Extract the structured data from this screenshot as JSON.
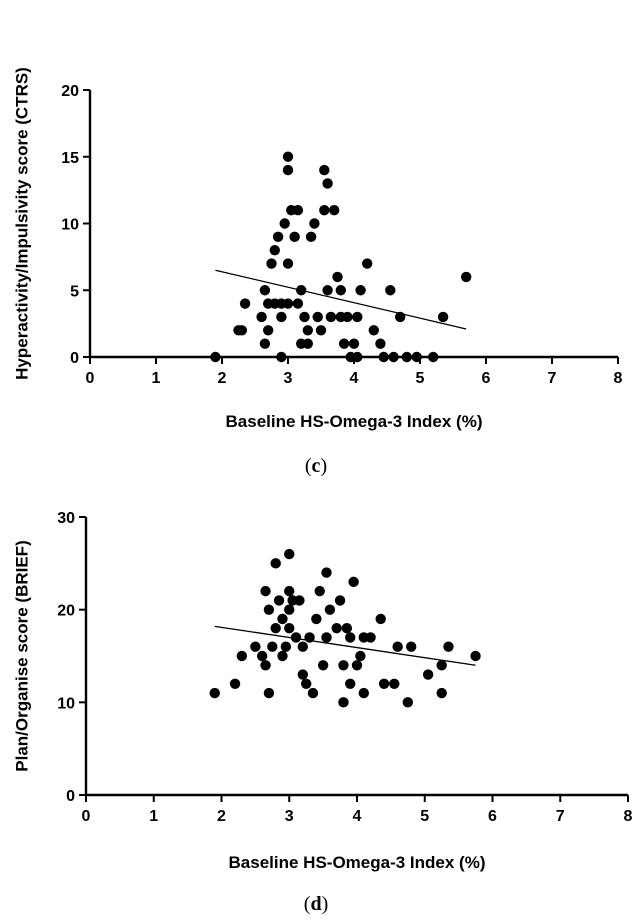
{
  "chart_data": [
    {
      "type": "scatter",
      "panel_label": "c",
      "xlabel": "Baseline HS-Omega-3 Index (%)",
      "ylabel": "Hyperactivity/Impulsivity score (CTRS)",
      "xlim": [
        0,
        8
      ],
      "ylim": [
        0,
        20
      ],
      "x_ticks": [
        0,
        1,
        2,
        3,
        4,
        5,
        6,
        7,
        8
      ],
      "y_ticks": [
        0,
        5,
        10,
        15,
        20
      ],
      "grid": false,
      "marker_color": "#000000",
      "points": [
        [
          1.9,
          0
        ],
        [
          2.25,
          2
        ],
        [
          2.3,
          2
        ],
        [
          2.35,
          4
        ],
        [
          2.6,
          3
        ],
        [
          2.65,
          1
        ],
        [
          2.7,
          2
        ],
        [
          2.65,
          5
        ],
        [
          2.7,
          4
        ],
        [
          2.75,
          7
        ],
        [
          2.8,
          8
        ],
        [
          2.8,
          4
        ],
        [
          2.85,
          9
        ],
        [
          2.9,
          4
        ],
        [
          2.9,
          3
        ],
        [
          2.9,
          0
        ],
        [
          2.95,
          10
        ],
        [
          3.0,
          15
        ],
        [
          3.0,
          14
        ],
        [
          3.0,
          7
        ],
        [
          3.0,
          4
        ],
        [
          3.05,
          11
        ],
        [
          3.1,
          9
        ],
        [
          3.15,
          11
        ],
        [
          3.15,
          4
        ],
        [
          3.2,
          1
        ],
        [
          3.2,
          5
        ],
        [
          3.25,
          3
        ],
        [
          3.3,
          2
        ],
        [
          3.3,
          1
        ],
        [
          3.35,
          9
        ],
        [
          3.4,
          10
        ],
        [
          3.45,
          3
        ],
        [
          3.5,
          2
        ],
        [
          3.55,
          14
        ],
        [
          3.55,
          11
        ],
        [
          3.6,
          13
        ],
        [
          3.6,
          5
        ],
        [
          3.65,
          3
        ],
        [
          3.7,
          11
        ],
        [
          3.75,
          6
        ],
        [
          3.8,
          5
        ],
        [
          3.8,
          3
        ],
        [
          3.85,
          1
        ],
        [
          3.9,
          3
        ],
        [
          3.95,
          0
        ],
        [
          4.0,
          1
        ],
        [
          4.05,
          0
        ],
        [
          4.05,
          3
        ],
        [
          4.1,
          5
        ],
        [
          4.2,
          7
        ],
        [
          4.3,
          2
        ],
        [
          4.4,
          1
        ],
        [
          4.45,
          0
        ],
        [
          4.55,
          5
        ],
        [
          4.6,
          0
        ],
        [
          4.7,
          3
        ],
        [
          4.8,
          0
        ],
        [
          4.95,
          0
        ],
        [
          5.2,
          0
        ],
        [
          5.35,
          3
        ],
        [
          5.7,
          6
        ]
      ],
      "trend_line": [
        [
          1.9,
          6.5
        ],
        [
          5.7,
          2.1
        ]
      ]
    },
    {
      "type": "scatter",
      "panel_label": "d",
      "xlabel": "Baseline HS-Omega-3 Index (%)",
      "ylabel": "Plan/Organise score (BRIEF)",
      "xlim": [
        0,
        8
      ],
      "ylim": [
        0,
        30
      ],
      "x_ticks": [
        0,
        1,
        2,
        3,
        4,
        5,
        6,
        7,
        8
      ],
      "y_ticks": [
        0,
        10,
        20,
        30
      ],
      "grid": false,
      "marker_color": "#000000",
      "points": [
        [
          1.9,
          11
        ],
        [
          2.2,
          12
        ],
        [
          2.3,
          15
        ],
        [
          2.5,
          16
        ],
        [
          2.6,
          15
        ],
        [
          2.65,
          22
        ],
        [
          2.65,
          14
        ],
        [
          2.7,
          20
        ],
        [
          2.7,
          11
        ],
        [
          2.75,
          16
        ],
        [
          2.8,
          25
        ],
        [
          2.8,
          18
        ],
        [
          2.85,
          21
        ],
        [
          2.9,
          19
        ],
        [
          2.9,
          15
        ],
        [
          2.95,
          16
        ],
        [
          3.0,
          22
        ],
        [
          3.0,
          26
        ],
        [
          3.0,
          18
        ],
        [
          3.0,
          20
        ],
        [
          3.05,
          21
        ],
        [
          3.1,
          17
        ],
        [
          3.15,
          21
        ],
        [
          3.2,
          16
        ],
        [
          3.2,
          13
        ],
        [
          3.25,
          12
        ],
        [
          3.3,
          17
        ],
        [
          3.35,
          11
        ],
        [
          3.4,
          19
        ],
        [
          3.45,
          22
        ],
        [
          3.5,
          14
        ],
        [
          3.55,
          24
        ],
        [
          3.55,
          17
        ],
        [
          3.6,
          20
        ],
        [
          3.7,
          18
        ],
        [
          3.75,
          21
        ],
        [
          3.8,
          14
        ],
        [
          3.8,
          10
        ],
        [
          3.85,
          18
        ],
        [
          3.9,
          17
        ],
        [
          3.9,
          12
        ],
        [
          3.95,
          23
        ],
        [
          4.0,
          14
        ],
        [
          4.05,
          15
        ],
        [
          4.1,
          11
        ],
        [
          4.1,
          17
        ],
        [
          4.2,
          17
        ],
        [
          4.35,
          19
        ],
        [
          4.4,
          12
        ],
        [
          4.55,
          12
        ],
        [
          4.6,
          16
        ],
        [
          4.75,
          10
        ],
        [
          4.8,
          16
        ],
        [
          5.05,
          13
        ],
        [
          5.25,
          11
        ],
        [
          5.25,
          14
        ],
        [
          5.35,
          16
        ],
        [
          5.75,
          15
        ]
      ],
      "trend_line": [
        [
          1.9,
          18.2
        ],
        [
          5.75,
          14.0
        ]
      ]
    }
  ]
}
